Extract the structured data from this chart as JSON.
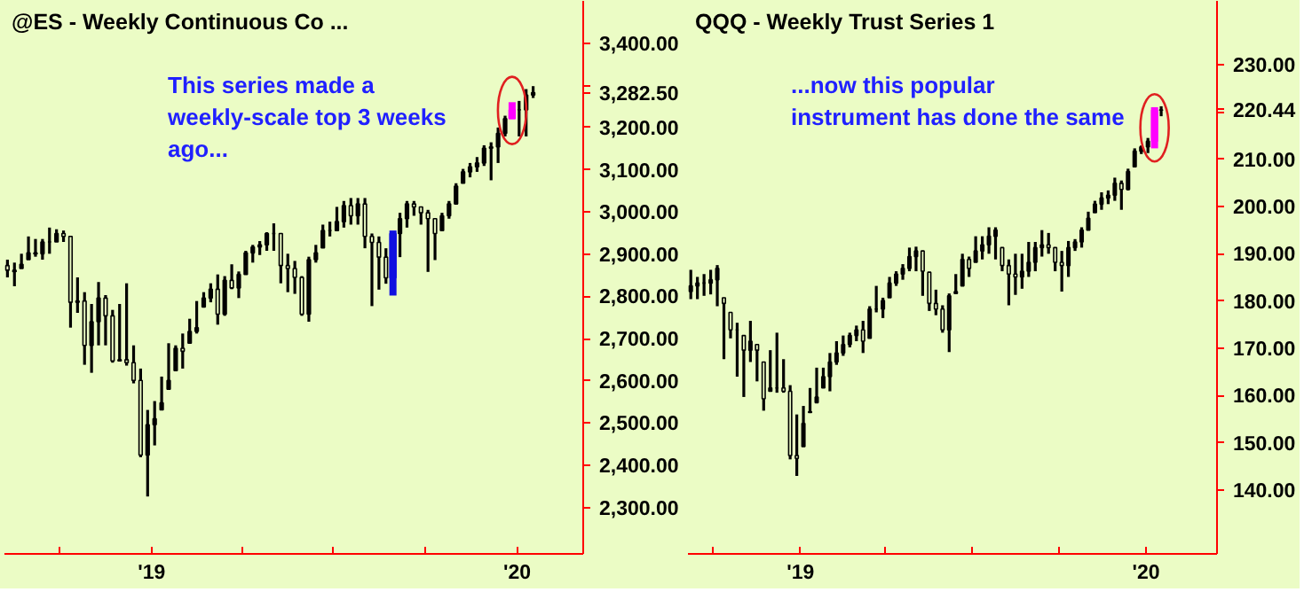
{
  "chart_data": [
    {
      "type": "candlestick",
      "title": "@ES - Weekly  Continuous Co ...",
      "annotations": [
        "This series made a\nweekly-scale top 3 weeks\nago..."
      ],
      "xlim": [
        "2018-08-07",
        "2020-03-07"
      ],
      "ylim": [
        2190,
        3500
      ],
      "xticks": [
        {
          "value": "2018-10-01",
          "label": null
        },
        {
          "value": "2019-01-01",
          "label": "'19"
        },
        {
          "value": "2019-04-01",
          "label": null
        },
        {
          "value": "2019-07-01",
          "label": null
        },
        {
          "value": "2019-10-01",
          "label": null
        },
        {
          "value": "2020-01-01",
          "label": "'20"
        }
      ],
      "yticks": [
        {
          "value": 2300,
          "label": "2,300.00"
        },
        {
          "value": 2400,
          "label": "2,400.00"
        },
        {
          "value": 2500,
          "label": "2,500.00"
        },
        {
          "value": 2600,
          "label": "2,600.00"
        },
        {
          "value": 2700,
          "label": "2,700.00"
        },
        {
          "value": 2800,
          "label": "2,800.00"
        },
        {
          "value": 2900,
          "label": "2,900.00"
        },
        {
          "value": 3000,
          "label": "3,000.00"
        },
        {
          "value": 3100,
          "label": "3,100.00"
        },
        {
          "value": 3200,
          "label": "3,200.00"
        },
        {
          "value": 3282.5,
          "label": "3,282.50"
        },
        {
          "value": 3300,
          "label": null
        },
        {
          "value": 3400,
          "label": "3,400.00"
        }
      ],
      "grid": false,
      "x": [
        "2018-08-10",
        "2018-08-17",
        "2018-08-24",
        "2018-08-31",
        "2018-09-07",
        "2018-09-14",
        "2018-09-21",
        "2018-09-28",
        "2018-10-05",
        "2018-10-12",
        "2018-10-19",
        "2018-10-26",
        "2018-11-02",
        "2018-11-09",
        "2018-11-16",
        "2018-11-23",
        "2018-11-30",
        "2018-12-07",
        "2018-12-14",
        "2018-12-21",
        "2018-12-28",
        "2019-01-04",
        "2019-01-11",
        "2019-01-18",
        "2019-01-25",
        "2019-02-01",
        "2019-02-08",
        "2019-02-15",
        "2019-02-22",
        "2019-03-01",
        "2019-03-08",
        "2019-03-15",
        "2019-03-22",
        "2019-03-29",
        "2019-04-05",
        "2019-04-12",
        "2019-04-19",
        "2019-04-26",
        "2019-05-03",
        "2019-05-10",
        "2019-05-17",
        "2019-05-24",
        "2019-05-31",
        "2019-06-07",
        "2019-06-14",
        "2019-06-21",
        "2019-06-28",
        "2019-07-05",
        "2019-07-12",
        "2019-07-19",
        "2019-07-26",
        "2019-08-02",
        "2019-08-09",
        "2019-08-16",
        "2019-08-23",
        "2019-08-30",
        "2019-09-06",
        "2019-09-13",
        "2019-09-20",
        "2019-09-27",
        "2019-10-04",
        "2019-10-11",
        "2019-10-18",
        "2019-10-25",
        "2019-11-01",
        "2019-11-08",
        "2019-11-15",
        "2019-11-22",
        "2019-11-29",
        "2019-12-06",
        "2019-12-13",
        "2019-12-20",
        "2019-12-27",
        "2020-01-03",
        "2020-01-10",
        "2020-01-17"
      ],
      "ohlc": [
        [
          2873,
          2887,
          2845,
          2862
        ],
        [
          2862,
          2880,
          2824,
          2859
        ],
        [
          2866,
          2901,
          2866,
          2876
        ],
        [
          2887,
          2942,
          2887,
          2903
        ],
        [
          2903,
          2936,
          2894,
          2901
        ],
        [
          2901,
          2936,
          2887,
          2929
        ],
        [
          2929,
          2963,
          2901,
          2929
        ],
        [
          2929,
          2959,
          2929,
          2949
        ],
        [
          2949,
          2956,
          2929,
          2942
        ],
        [
          2942,
          2942,
          2726,
          2786
        ],
        [
          2786,
          2845,
          2761,
          2789
        ],
        [
          2789,
          2810,
          2638,
          2684
        ],
        [
          2684,
          2782,
          2619,
          2740
        ],
        [
          2740,
          2834,
          2684,
          2796
        ],
        [
          2796,
          2803,
          2684,
          2754
        ],
        [
          2754,
          2768,
          2643,
          2647
        ],
        [
          2647,
          2782,
          2647,
          2650
        ],
        [
          2650,
          2831,
          2636,
          2643
        ],
        [
          2643,
          2684,
          2594,
          2601
        ],
        [
          2601,
          2629,
          2419,
          2424
        ],
        [
          2424,
          2531,
          2326,
          2496
        ],
        [
          2496,
          2552,
          2447,
          2510
        ],
        [
          2531,
          2610,
          2531,
          2548
        ],
        [
          2580,
          2689,
          2580,
          2601
        ],
        [
          2624,
          2684,
          2624,
          2677
        ],
        [
          2677,
          2712,
          2629,
          2670
        ],
        [
          2689,
          2747,
          2689,
          2717
        ],
        [
          2717,
          2789,
          2712,
          2726
        ],
        [
          2775,
          2810,
          2775,
          2796
        ],
        [
          2796,
          2831,
          2786,
          2817
        ],
        [
          2817,
          2852,
          2733,
          2758
        ],
        [
          2758,
          2848,
          2754,
          2838
        ],
        [
          2838,
          2876,
          2817,
          2820
        ],
        [
          2820,
          2859,
          2796,
          2852
        ],
        [
          2852,
          2908,
          2852,
          2903
        ],
        [
          2903,
          2922,
          2880,
          2917
        ],
        [
          2917,
          2931,
          2898,
          2922
        ],
        [
          2922,
          2952,
          2908,
          2949
        ],
        [
          2949,
          2973,
          2908,
          2949
        ],
        [
          2949,
          2949,
          2831,
          2873
        ],
        [
          2873,
          2901,
          2810,
          2866
        ],
        [
          2866,
          2884,
          2806,
          2845
        ],
        [
          2845,
          2848,
          2754,
          2758
        ],
        [
          2758,
          2894,
          2740,
          2887
        ],
        [
          2887,
          2922,
          2880,
          2903
        ],
        [
          2915,
          2970,
          2915,
          2956
        ],
        [
          2956,
          2977,
          2942,
          2956
        ],
        [
          2956,
          3012,
          2956,
          2977
        ],
        [
          2977,
          3026,
          2963,
          3015
        ],
        [
          3015,
          3033,
          2970,
          2991
        ],
        [
          2991,
          3033,
          2970,
          3019
        ],
        [
          3019,
          3033,
          2914,
          2942
        ],
        [
          2942,
          2949,
          2777,
          2928
        ],
        [
          2928,
          2942,
          2816,
          2893
        ],
        [
          2893,
          2914,
          2830,
          2844
        ],
        [
          2844,
          2956,
          2802,
          2949
        ],
        [
          2949,
          2998,
          2893,
          2984
        ],
        [
          2984,
          3026,
          2963,
          3019
        ],
        [
          3019,
          3026,
          2991,
          3012
        ],
        [
          3012,
          3012,
          2970,
          2998
        ],
        [
          2998,
          3005,
          2858,
          2984
        ],
        [
          2984,
          2984,
          2886,
          2949
        ],
        [
          2956,
          2998,
          2956,
          2991
        ],
        [
          2991,
          3026,
          2984,
          3019
        ],
        [
          3019,
          3068,
          3019,
          3061
        ],
        [
          3068,
          3102,
          3068,
          3095
        ],
        [
          3095,
          3116,
          3082,
          3107
        ],
        [
          3107,
          3130,
          3095,
          3116
        ],
        [
          3116,
          3158,
          3109,
          3151
        ],
        [
          3151,
          3165,
          3075,
          3154
        ],
        [
          3154,
          3200,
          3116,
          3186
        ],
        [
          3186,
          3228,
          3179,
          3221
        ],
        [
          3221,
          3260,
          3221,
          3242
        ],
        [
          3242,
          3263,
          3179,
          3242
        ],
        [
          3242,
          3291,
          3179,
          3277
        ],
        [
          3277,
          3298,
          3270,
          3282.5
        ]
      ],
      "colors": [
        "#000000",
        "#000000",
        "#000000",
        "#000000",
        "#000000",
        "#000000",
        "#000000",
        "#000000",
        "#000000",
        "#000000",
        "#000000",
        "#000000",
        "#000000",
        "#000000",
        "#000000",
        "#000000",
        "#000000",
        "#000000",
        "#000000",
        "#000000",
        "#000000",
        "#000000",
        "#000000",
        "#000000",
        "#000000",
        "#000000",
        "#000000",
        "#000000",
        "#000000",
        "#000000",
        "#000000",
        "#000000",
        "#000000",
        "#000000",
        "#000000",
        "#000000",
        "#000000",
        "#000000",
        "#000000",
        "#000000",
        "#000000",
        "#000000",
        "#000000",
        "#000000",
        "#000000",
        "#000000",
        "#000000",
        "#000000",
        "#000000",
        "#000000",
        "#000000",
        "#000000",
        "#000000",
        "#000000",
        "#000000",
        "#1010e0",
        "#000000",
        "#000000",
        "#000000",
        "#000000",
        "#000000",
        "#000000",
        "#000000",
        "#000000",
        "#000000",
        "#000000",
        "#000000",
        "#000000",
        "#000000",
        "#000000",
        "#000000",
        "#000000",
        "#ff00ff",
        "#000000",
        "#000000",
        "#000000"
      ]
    },
    {
      "type": "candlestick",
      "title": "QQQ - Weekly  Trust Series 1",
      "annotations": [
        "...now this popular\ninstrument has done the same"
      ],
      "xlim": [
        "2018-09-04",
        "2020-03-16"
      ],
      "ylim": [
        126.5,
        243.5
      ],
      "xticks": [
        {
          "value": "2018-10-01",
          "label": null
        },
        {
          "value": "2019-01-01",
          "label": "'19"
        },
        {
          "value": "2019-04-01",
          "label": null
        },
        {
          "value": "2019-07-01",
          "label": null
        },
        {
          "value": "2019-10-01",
          "label": null
        },
        {
          "value": "2020-01-01",
          "label": "'20"
        }
      ],
      "yticks": [
        {
          "value": 140,
          "label": "140.00"
        },
        {
          "value": 150,
          "label": "150.00"
        },
        {
          "value": 160,
          "label": "160.00"
        },
        {
          "value": 170,
          "label": "170.00"
        },
        {
          "value": 180,
          "label": "180.00"
        },
        {
          "value": 190,
          "label": "190.00"
        },
        {
          "value": 200,
          "label": "200.00"
        },
        {
          "value": 210,
          "label": "210.00"
        },
        {
          "value": 220,
          "label": null
        },
        {
          "value": 220.44,
          "label": "220.44"
        },
        {
          "value": 230,
          "label": "230.00"
        }
      ],
      "grid": false,
      "x": [
        "2018-09-07",
        "2018-09-14",
        "2018-09-21",
        "2018-09-28",
        "2018-10-05",
        "2018-10-12",
        "2018-10-19",
        "2018-10-26",
        "2018-11-02",
        "2018-11-09",
        "2018-11-16",
        "2018-11-23",
        "2018-11-30",
        "2018-12-07",
        "2018-12-14",
        "2018-12-21",
        "2018-12-28",
        "2019-01-04",
        "2019-01-11",
        "2019-01-18",
        "2019-01-25",
        "2019-02-01",
        "2019-02-08",
        "2019-02-15",
        "2019-02-22",
        "2019-03-01",
        "2019-03-08",
        "2019-03-15",
        "2019-03-22",
        "2019-03-29",
        "2019-04-05",
        "2019-04-12",
        "2019-04-19",
        "2019-04-26",
        "2019-05-03",
        "2019-05-10",
        "2019-05-17",
        "2019-05-24",
        "2019-05-31",
        "2019-06-07",
        "2019-06-14",
        "2019-06-21",
        "2019-06-28",
        "2019-07-05",
        "2019-07-12",
        "2019-07-19",
        "2019-07-26",
        "2019-08-02",
        "2019-08-09",
        "2019-08-16",
        "2019-08-23",
        "2019-08-30",
        "2019-09-06",
        "2019-09-13",
        "2019-09-20",
        "2019-09-27",
        "2019-10-04",
        "2019-10-11",
        "2019-10-18",
        "2019-10-25",
        "2019-11-01",
        "2019-11-08",
        "2019-11-15",
        "2019-11-22",
        "2019-11-29",
        "2019-12-06",
        "2019-12-13",
        "2019-12-20",
        "2019-12-27",
        "2020-01-03",
        "2020-01-10",
        "2020-01-17"
      ],
      "ohlc": [
        [
          182.0,
          186.6,
          180.4,
          183.2
        ],
        [
          183.2,
          185.1,
          180.4,
          183.8
        ],
        [
          183.8,
          185.7,
          181.1,
          183.8
        ],
        [
          183.8,
          186.6,
          181.4,
          184.5
        ],
        [
          184.5,
          187.6,
          178.9,
          186.9
        ],
        [
          180.7,
          180.7,
          167.7,
          179.5
        ],
        [
          177.6,
          177.6,
          172.1,
          173.9
        ],
        [
          173.9,
          175.4,
          164.0,
          173.9
        ],
        [
          172.7,
          172.7,
          159.7,
          169.6
        ],
        [
          169.6,
          175.8,
          167.1,
          171.5
        ],
        [
          170.8,
          170.8,
          163.0,
          169.6
        ],
        [
          167.1,
          167.1,
          156.8,
          159.3
        ],
        [
          160.9,
          169.6,
          160.9,
          161.6
        ],
        [
          161.6,
          173.3,
          160.6,
          161.6
        ],
        [
          161.6,
          167.7,
          160.6,
          160.9
        ],
        [
          160.9,
          162.2,
          146.5,
          147.3
        ],
        [
          147.3,
          156.0,
          143.0,
          146.7
        ],
        [
          149.2,
          157.8,
          149.2,
          154.1
        ],
        [
          156.4,
          161.6,
          156.4,
          156.6
        ],
        [
          158.5,
          165.9,
          158.5,
          159.7
        ],
        [
          161.6,
          165.9,
          161.6,
          164.0
        ],
        [
          164.0,
          169.0,
          160.9,
          167.1
        ],
        [
          167.1,
          171.5,
          166.5,
          169.0
        ],
        [
          169.0,
          172.7,
          168.4,
          170.8
        ],
        [
          170.8,
          173.3,
          170.2,
          172.7
        ],
        [
          172.7,
          174.8,
          171.5,
          173.9
        ],
        [
          173.9,
          175.8,
          169.0,
          171.5
        ],
        [
          172.1,
          178.9,
          172.1,
          178.3
        ],
        [
          178.3,
          183.2,
          177.6,
          178.3
        ],
        [
          178.3,
          180.7,
          176.4,
          180.1
        ],
        [
          180.7,
          185.1,
          180.7,
          183.8
        ],
        [
          183.8,
          186.3,
          183.2,
          185.7
        ],
        [
          185.7,
          187.8,
          184.5,
          186.9
        ],
        [
          186.9,
          191.3,
          186.3,
          189.4
        ],
        [
          189.4,
          191.5,
          186.3,
          190.6
        ],
        [
          190.6,
          190.6,
          181.1,
          186.3
        ],
        [
          186.1,
          186.1,
          177.9,
          179.5
        ],
        [
          179.5,
          182.4,
          177.0,
          178.3
        ],
        [
          178.3,
          179.1,
          173.3,
          173.9
        ],
        [
          173.9,
          181.6,
          169.2,
          181.1
        ],
        [
          181.6,
          185.7,
          181.6,
          182.0
        ],
        [
          183.2,
          190.0,
          183.2,
          188.8
        ],
        [
          188.8,
          189.4,
          185.1,
          186.9
        ],
        [
          188.2,
          193.7,
          188.2,
          190.6
        ],
        [
          190.6,
          193.7,
          188.8,
          191.9
        ],
        [
          191.9,
          195.6,
          190.0,
          193.7
        ],
        [
          193.7,
          195.6,
          188.8,
          195.0
        ],
        [
          191.3,
          191.3,
          186.3,
          187.5
        ],
        [
          187.5,
          188.8,
          179.1,
          185.7
        ],
        [
          185.7,
          190.0,
          181.3,
          185.1
        ],
        [
          185.1,
          190.0,
          182.6,
          186.3
        ],
        [
          186.3,
          192.5,
          185.1,
          188.2
        ],
        [
          188.2,
          192.5,
          186.3,
          191.3
        ],
        [
          191.3,
          195.0,
          189.4,
          191.9
        ],
        [
          191.9,
          194.4,
          190.0,
          191.3
        ],
        [
          191.3,
          191.3,
          186.3,
          188.2
        ],
        [
          188.2,
          190.6,
          182.0,
          187.5
        ],
        [
          187.5,
          192.7,
          185.1,
          191.3
        ],
        [
          191.3,
          193.1,
          190.6,
          192.5
        ],
        [
          192.5,
          195.6,
          191.3,
          195.0
        ],
        [
          195.0,
          198.9,
          195.0,
          197.5
        ],
        [
          198.7,
          201.2,
          198.7,
          200.5
        ],
        [
          200.5,
          203.0,
          199.3,
          201.8
        ],
        [
          201.8,
          203.4,
          200.5,
          202.4
        ],
        [
          202.4,
          206.1,
          201.2,
          204.9
        ],
        [
          204.9,
          205.5,
          199.3,
          203.6
        ],
        [
          203.6,
          208.0,
          203.4,
          207.4
        ],
        [
          208.4,
          212.3,
          208.4,
          211.7
        ],
        [
          211.7,
          212.9,
          211.1,
          212.6
        ],
        [
          212.6,
          214.5,
          211.3,
          213.8
        ],
        [
          213.8,
          221.0,
          212.3,
          220.4
        ],
        [
          220.4,
          221.2,
          219.1,
          220.44
        ]
      ],
      "colors": [
        "#000000",
        "#000000",
        "#000000",
        "#000000",
        "#000000",
        "#000000",
        "#000000",
        "#000000",
        "#000000",
        "#000000",
        "#000000",
        "#000000",
        "#000000",
        "#000000",
        "#000000",
        "#000000",
        "#000000",
        "#000000",
        "#000000",
        "#000000",
        "#000000",
        "#000000",
        "#000000",
        "#000000",
        "#000000",
        "#000000",
        "#000000",
        "#000000",
        "#000000",
        "#000000",
        "#000000",
        "#000000",
        "#000000",
        "#000000",
        "#000000",
        "#000000",
        "#000000",
        "#000000",
        "#000000",
        "#000000",
        "#000000",
        "#000000",
        "#000000",
        "#000000",
        "#000000",
        "#000000",
        "#000000",
        "#000000",
        "#000000",
        "#000000",
        "#000000",
        "#000000",
        "#000000",
        "#000000",
        "#000000",
        "#000000",
        "#000000",
        "#000000",
        "#000000",
        "#000000",
        "#000000",
        "#000000",
        "#000000",
        "#000000",
        "#000000",
        "#000000",
        "#000000",
        "#000000",
        "#000000",
        "#000000",
        "#ff00ff",
        "#000000"
      ]
    }
  ]
}
